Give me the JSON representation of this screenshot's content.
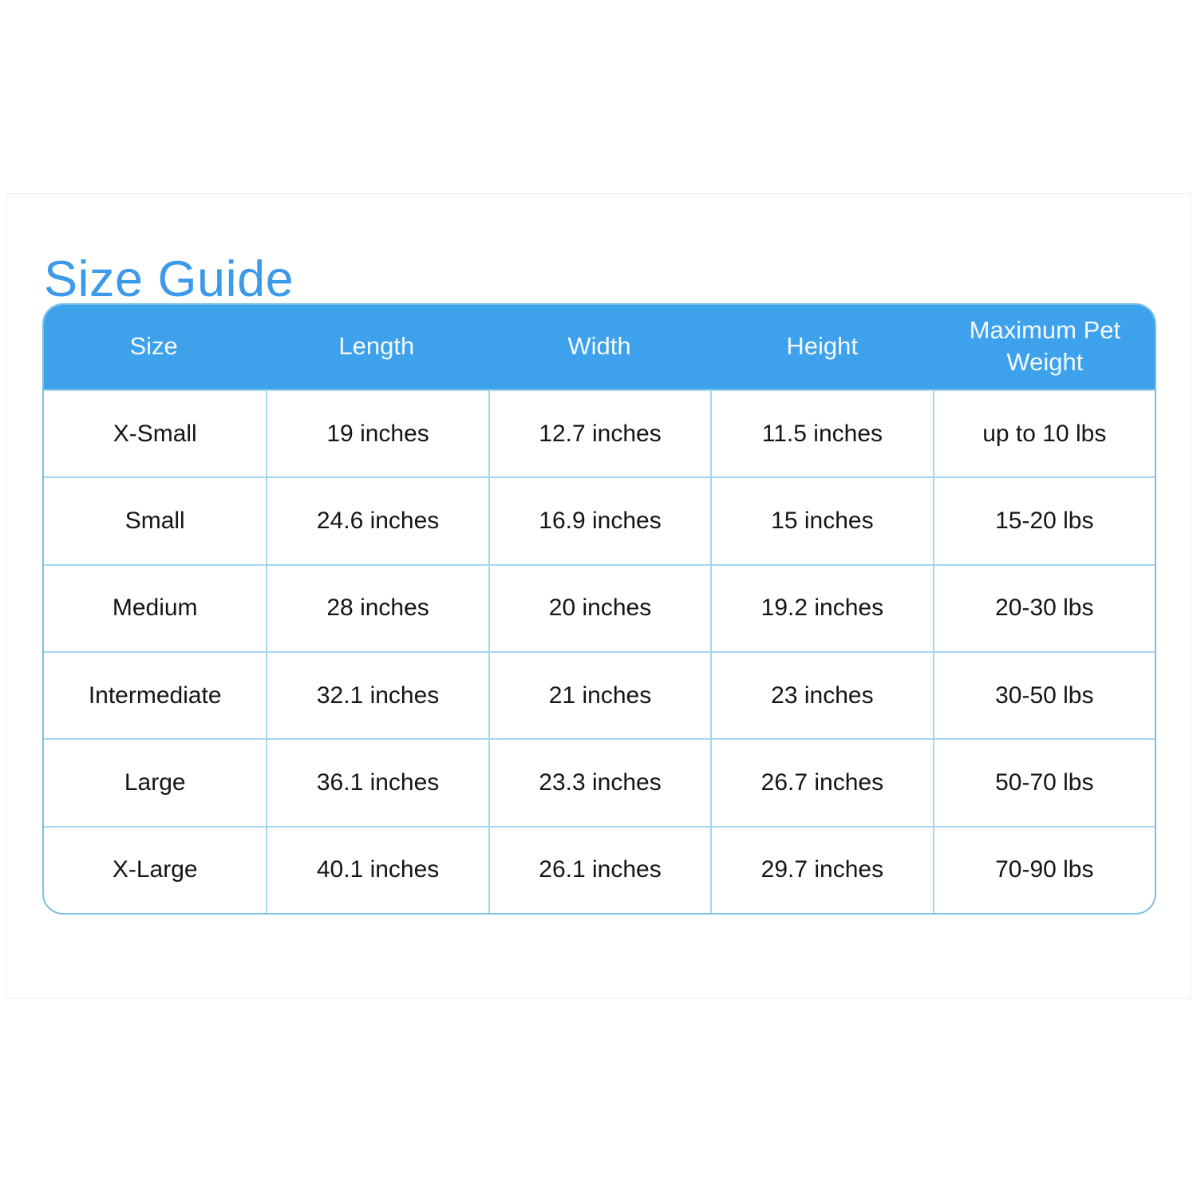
{
  "page": {
    "title": "Size Guide"
  },
  "table": {
    "headers": [
      "Size",
      "Length",
      "Width",
      "Height",
      "Maximum Pet Weight"
    ],
    "rows": [
      [
        "X-Small",
        "19 inches",
        "12.7 inches",
        "11.5 inches",
        "up to 10 lbs"
      ],
      [
        "Small",
        "24.6 inches",
        "16.9 inches",
        "15 inches",
        "15-20 lbs"
      ],
      [
        "Medium",
        "28 inches",
        "20 inches",
        "19.2 inches",
        "20-30 lbs"
      ],
      [
        "Intermediate",
        "32.1 inches",
        "21 inches",
        "23 inches",
        "30-50 lbs"
      ],
      [
        "Large",
        "36.1 inches",
        "23.3 inches",
        "26.7 inches",
        "50-70 lbs"
      ],
      [
        "X-Large",
        "40.1 inches",
        "26.1 inches",
        "29.7 inches",
        "70-90 lbs"
      ]
    ]
  },
  "colors": {
    "title_blue": "#3b9ae9",
    "header_blue": "#3ea1ec",
    "grid_blue": "#a4d6f0",
    "outer_border_blue": "#7cbfe5"
  }
}
